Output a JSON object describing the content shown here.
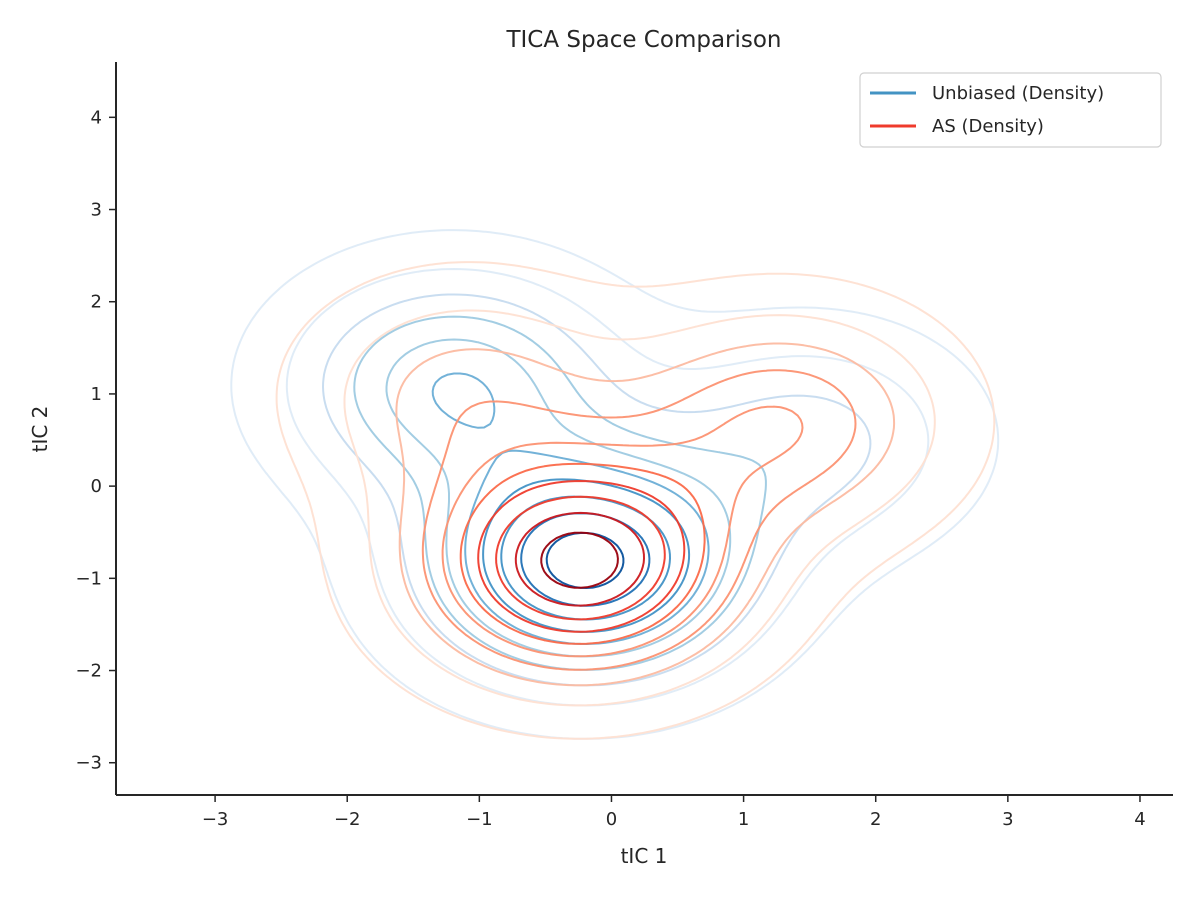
{
  "chart_data": {
    "type": "contour",
    "title": "TICA Space Comparison",
    "xlabel": "tIC 1",
    "ylabel": "tIC 2",
    "xlim": [
      -3.75,
      4.25
    ],
    "ylim": [
      -3.35,
      4.6
    ],
    "xticks": [
      -3,
      -2,
      -1,
      0,
      1,
      2,
      3,
      4
    ],
    "yticks": [
      -3,
      -2,
      -1,
      0,
      1,
      2,
      3,
      4
    ],
    "grid": false,
    "legend_position": "top-right",
    "series": [
      {
        "name": "Unbiased (Density)",
        "color": "#4393c3",
        "palette": [
          "#deebf7",
          "#c6dbef",
          "#9ecae1",
          "#6baed6",
          "#4292c6",
          "#2171b5",
          "#08519c"
        ],
        "modes": [
          {
            "x": -0.2,
            "y": -0.85,
            "weight": 1.0
          },
          {
            "x": -1.2,
            "y": 1.1,
            "weight": 0.55
          },
          {
            "x": 1.5,
            "y": 0.5,
            "weight": 0.3
          }
        ]
      },
      {
        "name": "AS (Density)",
        "color": "#ef3b2c",
        "palette": [
          "#fee0d2",
          "#fcbba1",
          "#fc9272",
          "#fb6a4a",
          "#ef3b2c",
          "#cb181d",
          "#99000d"
        ],
        "modes": [
          {
            "x": -0.25,
            "y": -0.85,
            "weight": 1.0
          },
          {
            "x": 1.3,
            "y": 0.7,
            "weight": 0.45
          },
          {
            "x": -1.1,
            "y": 1.0,
            "weight": 0.3
          }
        ]
      }
    ],
    "levels": 10
  }
}
